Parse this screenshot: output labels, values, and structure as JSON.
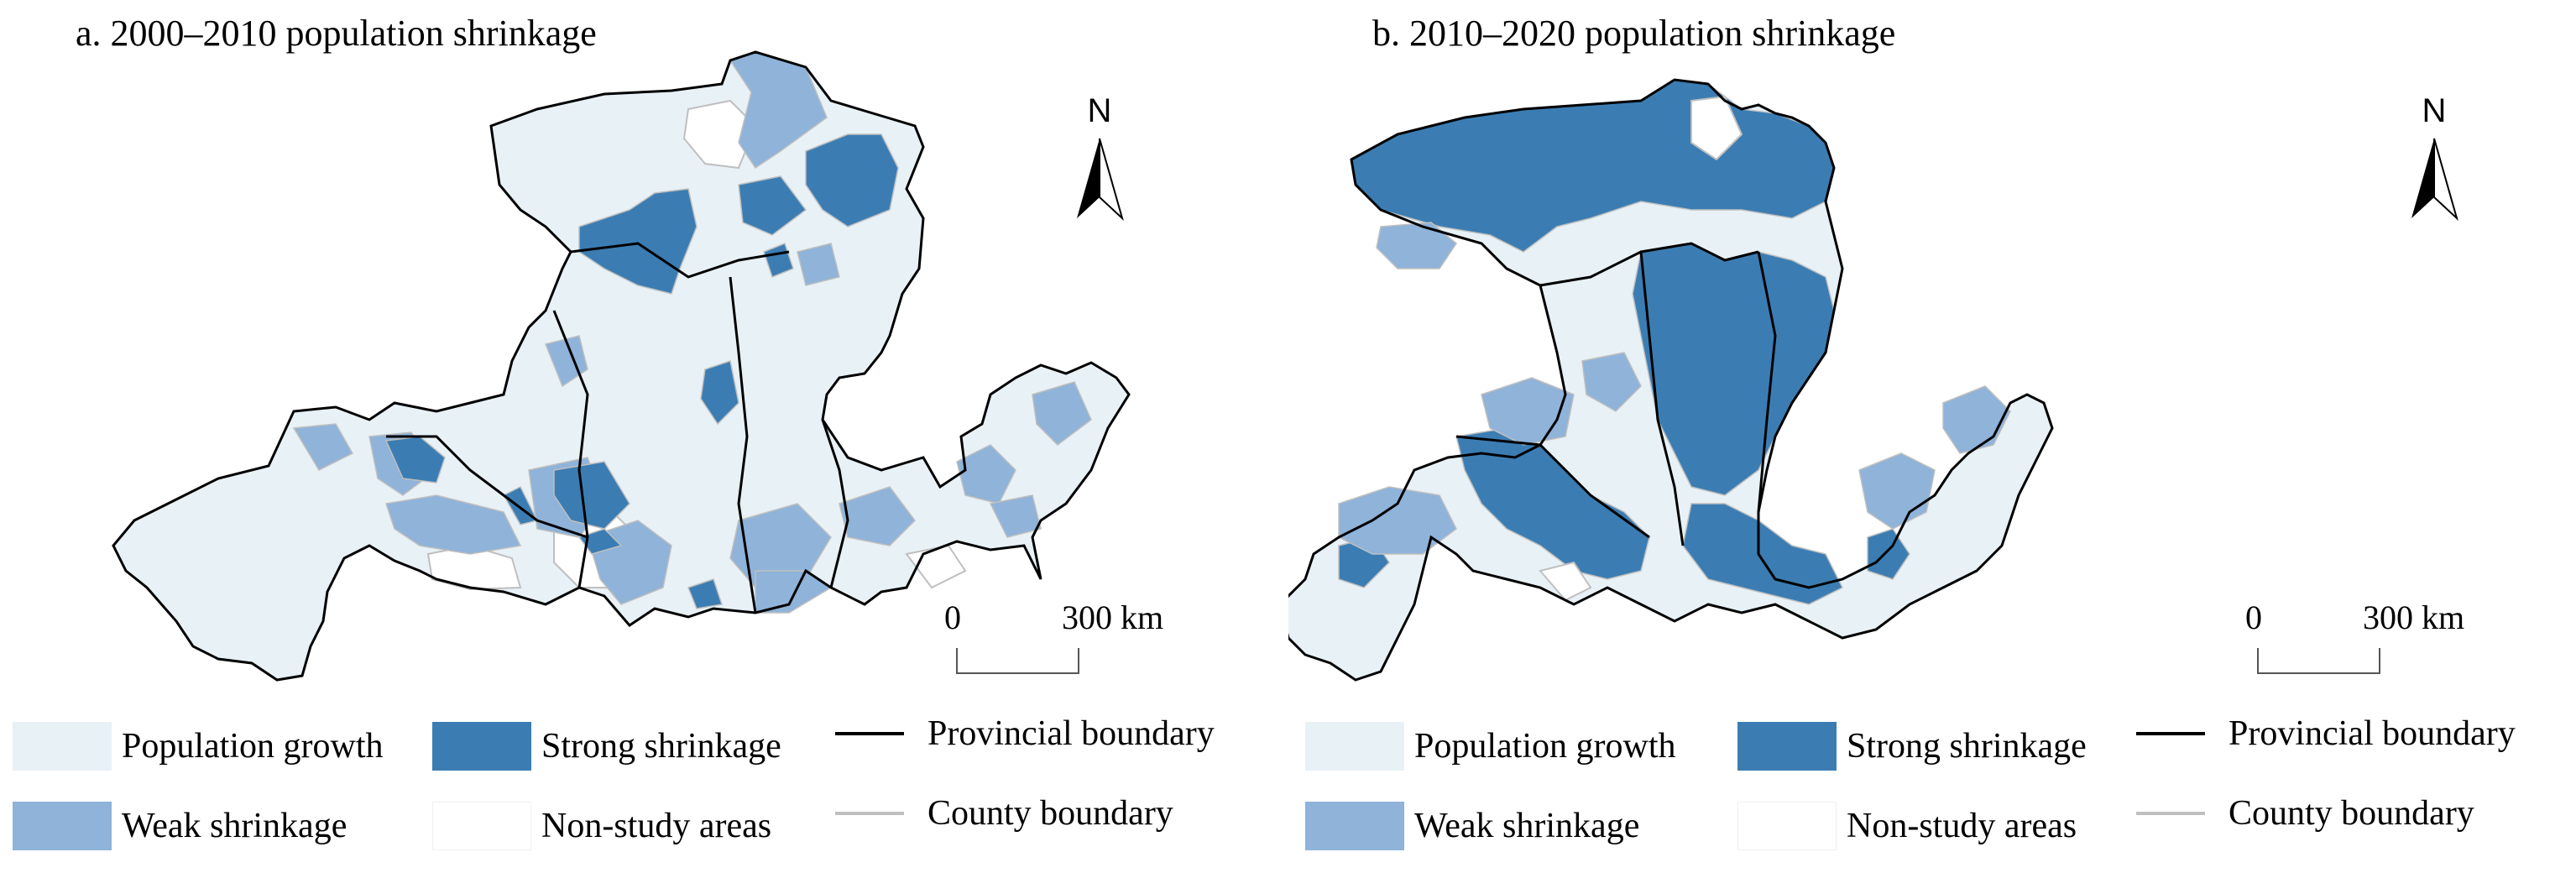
{
  "colors": {
    "population_growth": "#e8f1f6",
    "weak_shrinkage": "#8fb3d9",
    "strong_shrinkage": "#3b7db3",
    "non_study": "#ffffff",
    "provincial_boundary": "#000000",
    "county_boundary": "#bfbfbf"
  },
  "panels": [
    {
      "title": "a. 2000–2010 population shrinkage",
      "north_label": "N",
      "scale_zero": "0",
      "scale_max": "300 km"
    },
    {
      "title": "b. 2010–2020 population shrinkage",
      "north_label": "N",
      "scale_zero": "0",
      "scale_max": "300 km"
    }
  ],
  "legend": {
    "population_growth": "Population growth",
    "strong_shrinkage": "Strong shrinkage",
    "provincial_boundary": "Provincial boundary",
    "weak_shrinkage": "Weak shrinkage",
    "non_study_areas": "Non-study areas",
    "county_boundary": "County boundary"
  }
}
